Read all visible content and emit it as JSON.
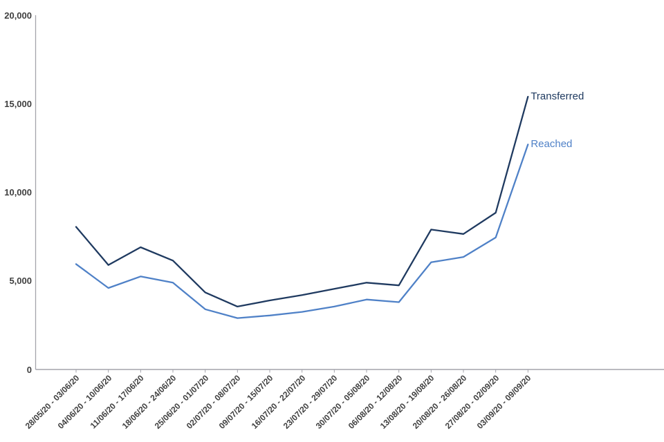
{
  "chart_data": {
    "type": "line",
    "title": "",
    "xlabel": "",
    "ylabel": "",
    "categories": [
      "28/05/20 - 03/06/20",
      "04/06/20 - 10/06/20",
      "11/06/20 - 17/06/20",
      "18/06/20 - 24/06/20",
      "25/06/20 - 01/07/20",
      "02/07/20 - 08/07/20",
      "09/07/20 - 15/07/20",
      "16/07/20 - 22/07/20",
      "23/07/20 - 29/07/20",
      "30/07/20 - 05/08/20",
      "06/08/20 - 12/08/20",
      "13/08/20 - 19/08/20",
      "20/08/20 - 26/08/20",
      "27/08/20 - 02/09/20",
      "03/09/20 - 09/09/20"
    ],
    "series": [
      {
        "name": "Transferred",
        "color": "#1f3a60",
        "values": [
          8050,
          5900,
          6900,
          6150,
          4350,
          3550,
          3900,
          4200,
          4550,
          4900,
          4750,
          7900,
          7650,
          8850,
          15400
        ]
      },
      {
        "name": "Reached",
        "color": "#4f81c7",
        "values": [
          5950,
          4600,
          5250,
          4900,
          3400,
          2900,
          3050,
          3250,
          3550,
          3950,
          3800,
          6050,
          6350,
          7450,
          12700
        ]
      }
    ],
    "ylim": [
      0,
      20000
    ],
    "yticks": [
      0,
      5000,
      10000,
      15000,
      20000
    ],
    "ytick_labels": [
      "0",
      "5,000",
      "10,000",
      "15,000",
      "20,000"
    ],
    "grid": false,
    "legend_position": "end-of-line-labels",
    "colors": {
      "axis": "#a3a3ab",
      "tick_text": "#3f3f3f",
      "background": "#ffffff"
    }
  }
}
